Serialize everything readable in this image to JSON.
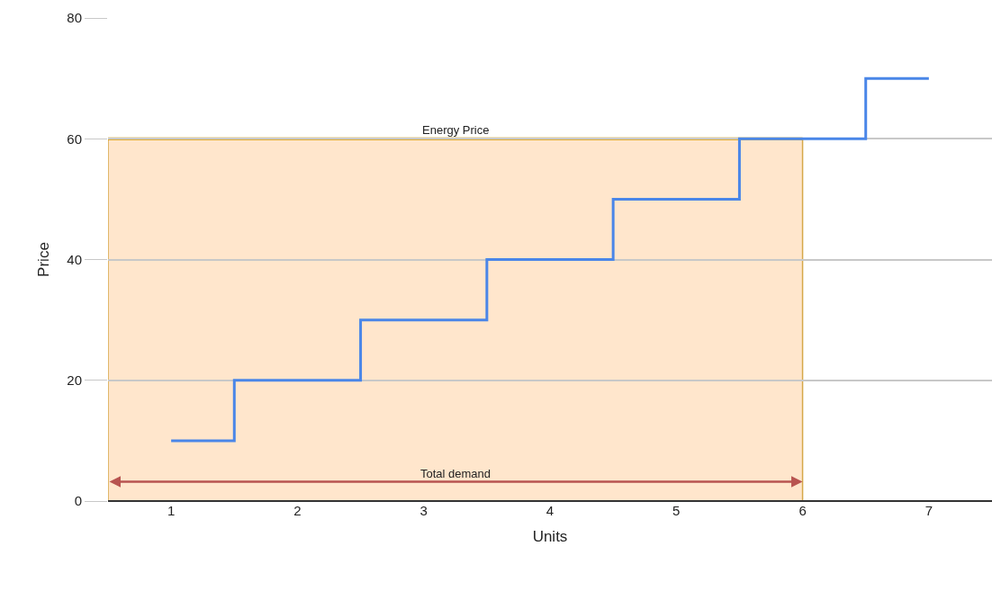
{
  "chart_data": {
    "type": "step",
    "xlabel": "Units",
    "ylabel": "Price",
    "x": [
      1,
      2,
      3,
      4,
      5,
      6,
      7
    ],
    "series": [
      {
        "color": "#4a86e8",
        "values": [
          10,
          20,
          30,
          40,
          50,
          60,
          70
        ]
      }
    ],
    "xlim": [
      0.5,
      7.5
    ],
    "xticks": [
      1,
      2,
      3,
      4,
      5,
      6,
      7
    ],
    "ylim": [
      0,
      80
    ],
    "yticks": [
      0,
      20,
      40,
      60,
      80
    ],
    "grid": "y",
    "ref_lines": [
      {
        "axis": "y",
        "value": 60,
        "label": "Energy Price",
        "color": "#d79b00"
      }
    ],
    "bands": [
      {
        "axis": "x",
        "from": 0.5,
        "to": 6,
        "color": "#ffe6cc",
        "label": "Total demand"
      }
    ]
  }
}
